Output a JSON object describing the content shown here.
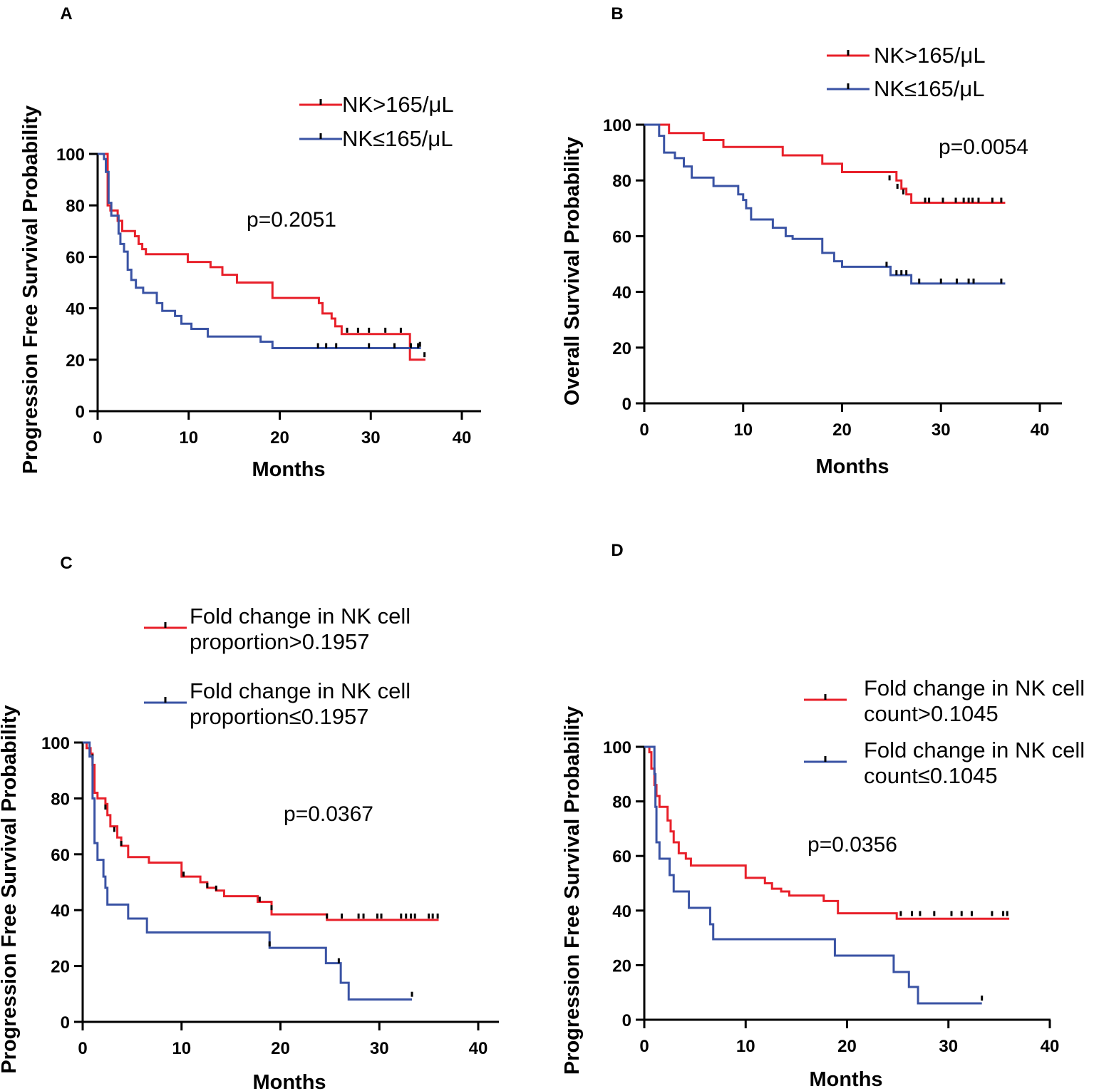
{
  "figure": {
    "panels": [
      {
        "letter": "A"
      },
      {
        "letter": "B"
      },
      {
        "letter": "C"
      },
      {
        "letter": "D"
      }
    ]
  },
  "colors": {
    "red": "#e8202a",
    "blue": "#3a53a4",
    "censor": "#000000",
    "axis": "#000000"
  },
  "chart_data": [
    {
      "panel": "A",
      "type": "line",
      "subtype": "kaplan-meier",
      "xlabel": "Months",
      "ylabel": "Progression Free Survival Probability",
      "xlim": [
        0,
        40
      ],
      "ylim": [
        0,
        100
      ],
      "xticks": [
        0,
        10,
        20,
        30,
        40
      ],
      "yticks": [
        0,
        20,
        40,
        60,
        80,
        100
      ],
      "pvalue": "p=0.2051",
      "series": [
        {
          "name": "NK>165/μL",
          "color": "#e8202a",
          "steps": [
            [
              0,
              100
            ],
            [
              1.1,
              80
            ],
            [
              1.4,
              78
            ],
            [
              2.2,
              74
            ],
            [
              2.7,
              70
            ],
            [
              4.1,
              68
            ],
            [
              4.5,
              65
            ],
            [
              4.9,
              63
            ],
            [
              5.3,
              61
            ],
            [
              9.9,
              58
            ],
            [
              12.4,
              56
            ],
            [
              13.7,
              53
            ],
            [
              15.3,
              50
            ],
            [
              19.2,
              44
            ],
            [
              24.3,
              42
            ],
            [
              24.7,
              38
            ],
            [
              25.7,
              36
            ],
            [
              26.1,
              33
            ],
            [
              26.8,
              30
            ],
            [
              34.3,
              20
            ]
          ],
          "end": 36,
          "censor": [
            [
              27.4,
              30.5
            ],
            [
              28.6,
              30.5
            ],
            [
              29.8,
              30.5
            ],
            [
              31.6,
              30.5
            ],
            [
              33.3,
              30.5
            ],
            [
              35.4,
              25
            ],
            [
              35.9,
              21
            ]
          ]
        },
        {
          "name": "NK≤165/μL",
          "color": "#3a53a4",
          "steps": [
            [
              0,
              100
            ],
            [
              0.7,
              98
            ],
            [
              0.9,
              93
            ],
            [
              1.2,
              81
            ],
            [
              1.5,
              76
            ],
            [
              2.3,
              69
            ],
            [
              2.5,
              65
            ],
            [
              2.9,
              62
            ],
            [
              3.3,
              55
            ],
            [
              3.7,
              51
            ],
            [
              4.2,
              48
            ],
            [
              5.0,
              46
            ],
            [
              6.5,
              42
            ],
            [
              7.1,
              39
            ],
            [
              8.5,
              37
            ],
            [
              9.2,
              34
            ],
            [
              10.3,
              32
            ],
            [
              12.1,
              29
            ],
            [
              17.9,
              27
            ],
            [
              19.2,
              24.5
            ]
          ],
          "end": 35.5,
          "censor": [
            [
              24.2,
              24.5
            ],
            [
              25.1,
              24.5
            ],
            [
              26.2,
              24.5
            ],
            [
              29.8,
              24.5
            ],
            [
              32.6,
              24.5
            ],
            [
              34.4,
              24.5
            ],
            [
              35.2,
              24.5
            ]
          ]
        }
      ]
    },
    {
      "panel": "B",
      "type": "line",
      "subtype": "kaplan-meier",
      "xlabel": "Months",
      "ylabel": "Overall Survival Probability",
      "xlim": [
        0,
        40
      ],
      "ylim": [
        0,
        100
      ],
      "xticks": [
        0,
        10,
        20,
        30,
        40
      ],
      "yticks": [
        0,
        20,
        40,
        60,
        80,
        100
      ],
      "pvalue": "p=0.0054",
      "series": [
        {
          "name": "NK>165/μL",
          "color": "#e8202a",
          "steps": [
            [
              0,
              100
            ],
            [
              2.5,
              97
            ],
            [
              6,
              94.5
            ],
            [
              8,
              92
            ],
            [
              14,
              89
            ],
            [
              18,
              86
            ],
            [
              20,
              83
            ],
            [
              25.5,
              80
            ],
            [
              26,
              77
            ],
            [
              26.5,
              75
            ],
            [
              27,
              72
            ]
          ],
          "end": 36.5,
          "censor": [
            [
              24.8,
              80
            ],
            [
              25.6,
              77
            ],
            [
              26.2,
              75
            ],
            [
              28.4,
              72
            ],
            [
              28.8,
              72
            ],
            [
              30.2,
              72
            ],
            [
              31.5,
              72
            ],
            [
              32.3,
              72
            ],
            [
              32.8,
              72
            ],
            [
              33.2,
              72
            ],
            [
              33.8,
              72
            ],
            [
              35.2,
              72
            ],
            [
              36.1,
              72
            ]
          ]
        },
        {
          "name": "NK≤165/μL",
          "color": "#3a53a4",
          "steps": [
            [
              0,
              100
            ],
            [
              1.5,
              96
            ],
            [
              2,
              90
            ],
            [
              3.1,
              88
            ],
            [
              4,
              85
            ],
            [
              4.8,
              81
            ],
            [
              7,
              78
            ],
            [
              9.5,
              75
            ],
            [
              10,
              73
            ],
            [
              10.3,
              70
            ],
            [
              10.8,
              66
            ],
            [
              13,
              63
            ],
            [
              14.3,
              60
            ],
            [
              15,
              59
            ],
            [
              18,
              54
            ],
            [
              19.2,
              51
            ],
            [
              20,
              49
            ],
            [
              24.9,
              46
            ],
            [
              27,
              43
            ]
          ],
          "end": 36.5,
          "censor": [
            [
              24.5,
              49
            ],
            [
              25.5,
              46
            ],
            [
              26,
              46
            ],
            [
              26.5,
              46
            ],
            [
              27.8,
              43
            ],
            [
              30,
              43
            ],
            [
              31.6,
              43
            ],
            [
              32.8,
              43
            ],
            [
              33.3,
              43
            ],
            [
              36.1,
              43
            ]
          ]
        }
      ]
    },
    {
      "panel": "C",
      "type": "line",
      "subtype": "kaplan-meier",
      "xlabel": "Months",
      "ylabel": "Progression Free Survival Probability",
      "xlim": [
        0,
        40
      ],
      "ylim": [
        0,
        100
      ],
      "xticks": [
        0,
        10,
        20,
        30,
        40
      ],
      "yticks": [
        0,
        20,
        40,
        60,
        80,
        100
      ],
      "pvalue": "p=0.0367",
      "series": [
        {
          "name": "Fold change in NK cell proportion>0.1957",
          "color": "#e8202a",
          "steps": [
            [
              0,
              100
            ],
            [
              0.4,
              98
            ],
            [
              0.8,
              96
            ],
            [
              1.0,
              92
            ],
            [
              1.2,
              82
            ],
            [
              1.5,
              80
            ],
            [
              2.3,
              78
            ],
            [
              2.5,
              74
            ],
            [
              2.8,
              70
            ],
            [
              3.5,
              66
            ],
            [
              3.9,
              63
            ],
            [
              4.6,
              59
            ],
            [
              6.7,
              57
            ],
            [
              10,
              52
            ],
            [
              11.9,
              50
            ],
            [
              12.6,
              48
            ],
            [
              13.5,
              47
            ],
            [
              14.3,
              45
            ],
            [
              17.7,
              43
            ],
            [
              19.1,
              38.5
            ],
            [
              24.7,
              36.5
            ]
          ],
          "end": 36,
          "censor": [
            [
              1.0,
              94
            ],
            [
              2.3,
              76
            ],
            [
              3.2,
              68
            ],
            [
              3.9,
              63
            ],
            [
              10.2,
              52
            ],
            [
              12.6,
              48
            ],
            [
              13.5,
              47
            ],
            [
              17.9,
              43
            ],
            [
              19.1,
              40
            ],
            [
              24.7,
              37
            ],
            [
              26.2,
              37
            ],
            [
              27.9,
              37
            ],
            [
              28.4,
              37
            ],
            [
              29.8,
              37
            ],
            [
              30.2,
              37
            ],
            [
              32.2,
              37
            ],
            [
              32.7,
              37
            ],
            [
              33.2,
              37
            ],
            [
              33.6,
              37
            ],
            [
              35.0,
              37
            ],
            [
              35.4,
              37
            ],
            [
              35.9,
              37
            ]
          ]
        },
        {
          "name": "Fold change in NK cell proportion≤0.1957",
          "color": "#3a53a4",
          "steps": [
            [
              0,
              100
            ],
            [
              0.7,
              95
            ],
            [
              1.0,
              80
            ],
            [
              1.2,
              64
            ],
            [
              1.5,
              58
            ],
            [
              2.1,
              52
            ],
            [
              2.3,
              48
            ],
            [
              2.5,
              42
            ],
            [
              4.6,
              37
            ],
            [
              6.5,
              32
            ],
            [
              18.9,
              26.5
            ],
            [
              24.6,
              21
            ],
            [
              26.1,
              14
            ],
            [
              26.9,
              8
            ]
          ],
          "end": 33.3,
          "censor": [
            [
              18.9,
              27
            ],
            [
              25.9,
              21
            ],
            [
              33.3,
              9
            ]
          ]
        }
      ]
    },
    {
      "panel": "D",
      "type": "line",
      "subtype": "kaplan-meier",
      "xlabel": "Months",
      "ylabel": "Progression Free Survival Probability",
      "xlim": [
        0,
        40
      ],
      "ylim": [
        0,
        100
      ],
      "xticks": [
        0,
        10,
        20,
        30,
        40
      ],
      "yticks": [
        0,
        20,
        40,
        60,
        80,
        100
      ],
      "pvalue": "p=0.0356",
      "series": [
        {
          "name": "Fold change in NK cell count>0.1045",
          "color": "#e8202a",
          "steps": [
            [
              0,
              100
            ],
            [
              0.5,
              98
            ],
            [
              0.7,
              92
            ],
            [
              1.0,
              86
            ],
            [
              1.2,
              82
            ],
            [
              1.5,
              78
            ],
            [
              2.3,
              73
            ],
            [
              2.6,
              69
            ],
            [
              2.9,
              65
            ],
            [
              3.4,
              61
            ],
            [
              4.1,
              59
            ],
            [
              4.6,
              56.5
            ],
            [
              10,
              52
            ],
            [
              11.9,
              50
            ],
            [
              12.6,
              48
            ],
            [
              13.5,
              47
            ],
            [
              14.3,
              45.5
            ],
            [
              17.7,
              43.5
            ],
            [
              19.1,
              39
            ],
            [
              24.9,
              37
            ]
          ],
          "end": 36,
          "censor": [
            [
              25.3,
              38
            ],
            [
              26.4,
              38
            ],
            [
              27.2,
              38
            ],
            [
              28.6,
              38
            ],
            [
              30.3,
              38
            ],
            [
              31.3,
              38
            ],
            [
              32.3,
              38
            ],
            [
              34.3,
              38
            ],
            [
              35.4,
              38
            ],
            [
              35.8,
              38
            ]
          ]
        },
        {
          "name": "Fold change in NK cell count≤0.1045",
          "color": "#3a53a4",
          "steps": [
            [
              0,
              100
            ],
            [
              1.0,
              90
            ],
            [
              1.1,
              78
            ],
            [
              1.2,
              65
            ],
            [
              1.5,
              59
            ],
            [
              2.5,
              53
            ],
            [
              2.9,
              47
            ],
            [
              4.4,
              41
            ],
            [
              6.5,
              35
            ],
            [
              6.8,
              29.5
            ],
            [
              18.8,
              23.5
            ],
            [
              24.6,
              17.5
            ],
            [
              26.1,
              12
            ],
            [
              27.0,
              6
            ]
          ],
          "end": 33.3,
          "censor": [
            [
              33.3,
              7
            ]
          ]
        }
      ]
    }
  ],
  "panels_text": {
    "A": {
      "legend": [
        "NK>165/μL",
        "NK≤165/μL"
      ]
    },
    "B": {
      "legend": [
        "NK>165/μL",
        "NK≤165/μL"
      ]
    },
    "C": {
      "legend": [
        [
          "Fold change in NK cell",
          "proportion>0.1957"
        ],
        [
          "Fold change in NK cell",
          "proportion≤0.1957"
        ]
      ]
    },
    "D": {
      "legend": [
        [
          "Fold change in NK cell",
          "count>0.1045"
        ],
        [
          "Fold change in NK cell",
          "count≤0.1045"
        ]
      ]
    }
  }
}
